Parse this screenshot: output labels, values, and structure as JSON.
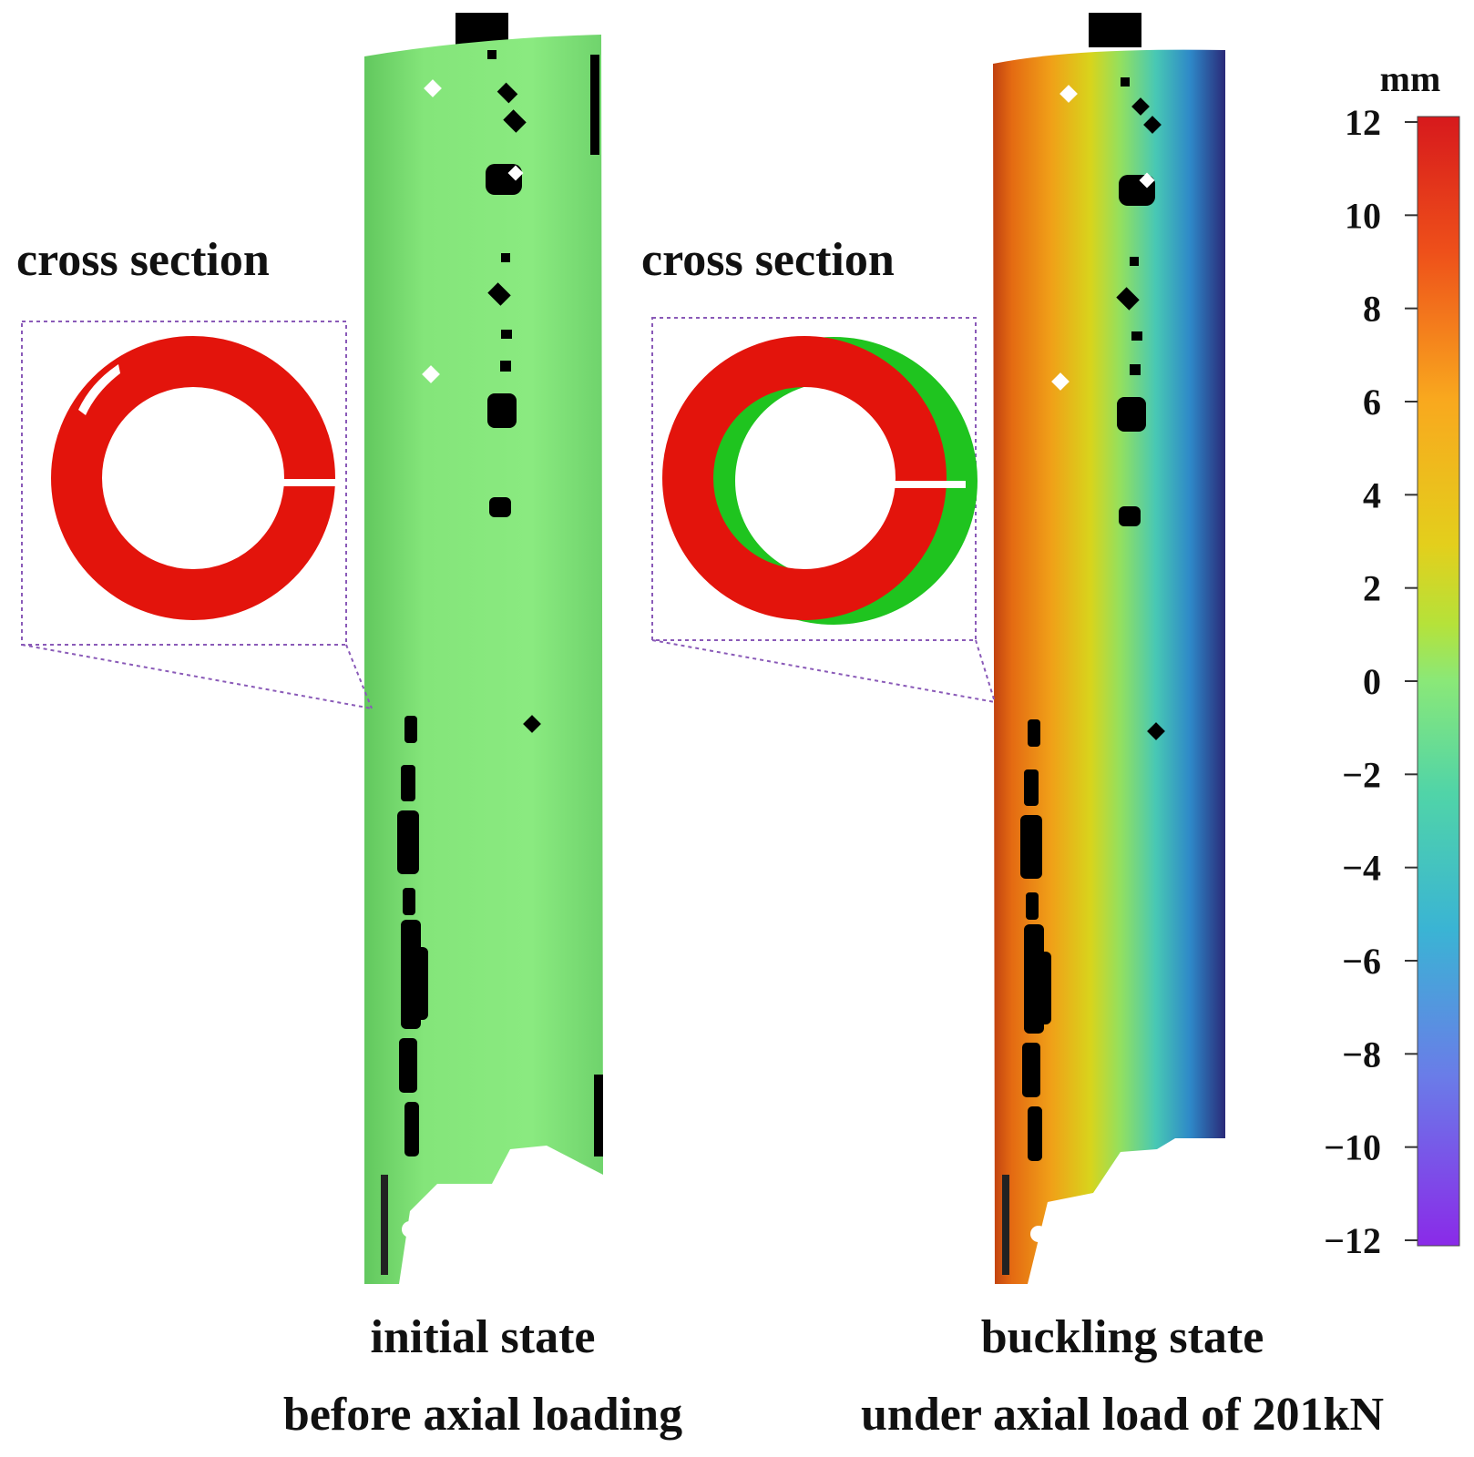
{
  "panels": {
    "left": {
      "cross_section_label": "cross section",
      "caption_line1": "initial state",
      "caption_line2": "before axial loading"
    },
    "right": {
      "cross_section_label": "cross section",
      "caption_line1": "buckling state",
      "caption_line2": "under axial load of 201kN"
    }
  },
  "colorbar": {
    "unit": "mm",
    "min": -12,
    "max": 12,
    "ticks": [
      "12",
      "10",
      "8",
      "6",
      "4",
      "2",
      "0",
      "−2",
      "−4",
      "−6",
      "−8",
      "−10",
      "−12"
    ],
    "colors": [
      "#d7191c",
      "#f46d1d",
      "#f9a81e",
      "#e3cf1c",
      "#c2e22a",
      "#8ae878",
      "#4fd0b0",
      "#3da8d8",
      "#6a78e6",
      "#8a36e8"
    ]
  },
  "colors": {
    "initial_surface": "#8ae878",
    "cross_section_initial": "#e3140c",
    "cross_section_deformed": "#1fc41f",
    "dashed_outline": "#8a5ab8"
  }
}
